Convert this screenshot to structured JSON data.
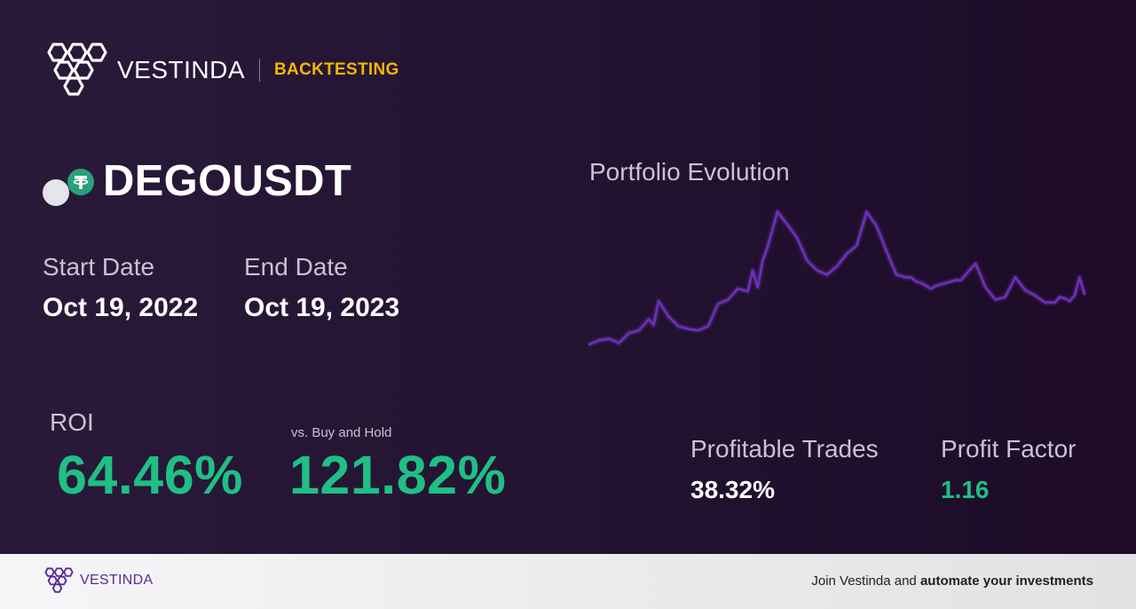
{
  "brand": {
    "name": "VESTINDA",
    "section": "BACKTESTING"
  },
  "asset": {
    "pair": "DEGOUSDT",
    "base_icon_letter": "D"
  },
  "dates": {
    "start_label": "Start Date",
    "start_value": "Oct 19, 2022",
    "end_label": "End Date",
    "end_value": "Oct 19, 2023"
  },
  "roi": {
    "label": "ROI",
    "value": "64.46%",
    "vs_label": "vs. Buy and Hold",
    "vs_value": "121.82%"
  },
  "chart": {
    "title": "Portfolio Evolution",
    "line_color": "#6a2fb0"
  },
  "chart_data": {
    "type": "line",
    "title": "Portfolio Evolution",
    "xlabel": "",
    "ylabel": "",
    "grid": false,
    "legend": "none",
    "x": [
      0,
      2,
      4,
      6,
      8,
      10,
      12,
      13,
      14,
      16,
      18,
      20,
      22,
      24,
      26,
      28,
      30,
      32,
      33,
      34,
      35,
      36,
      38,
      40,
      42,
      44,
      46,
      48,
      50,
      52,
      54,
      56,
      58,
      60,
      62,
      64,
      65,
      66,
      67,
      68,
      69,
      70,
      71,
      72,
      73,
      74,
      75,
      76,
      78,
      80,
      82,
      84,
      86,
      88,
      90,
      92,
      94,
      95,
      96,
      97,
      98,
      99,
      100
    ],
    "values": [
      0.02,
      0.05,
      0.06,
      0.03,
      0.1,
      0.12,
      0.2,
      0.16,
      0.33,
      0.22,
      0.15,
      0.13,
      0.12,
      0.15,
      0.31,
      0.34,
      0.42,
      0.4,
      0.55,
      0.43,
      0.62,
      0.72,
      0.97,
      0.88,
      0.78,
      0.62,
      0.55,
      0.52,
      0.58,
      0.67,
      0.73,
      0.97,
      0.87,
      0.69,
      0.52,
      0.5,
      0.5,
      0.47,
      0.46,
      0.44,
      0.42,
      0.44,
      0.45,
      0.46,
      0.47,
      0.48,
      0.48,
      0.52,
      0.6,
      0.43,
      0.34,
      0.36,
      0.5,
      0.41,
      0.37,
      0.32,
      0.32,
      0.36,
      0.35,
      0.33,
      0.37,
      0.5,
      0.38
    ],
    "ylim": [
      0,
      1
    ]
  },
  "stats": {
    "profitable_label": "Profitable Trades",
    "profitable_value": "38.32%",
    "pf_label": "Profit Factor",
    "pf_value": "1.16"
  },
  "colors": {
    "accent_green": "#1fbf85",
    "accent_yellow": "#f2b705",
    "brand_purple": "#5b2a9c"
  },
  "footer": {
    "brand": "VESTINDA",
    "cta_prefix": "Join Vestinda and ",
    "cta_bold": "automate your investments"
  }
}
